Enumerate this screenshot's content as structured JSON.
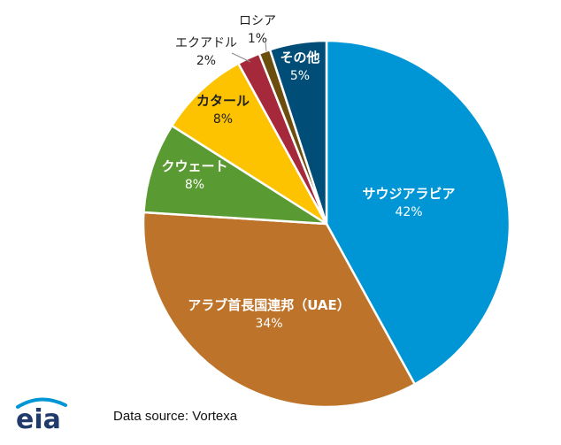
{
  "chart_data": {
    "type": "pie",
    "title": "",
    "categories": [
      "サウジアラビア",
      "アラブ首長国連邦（UAE）",
      "クウェート",
      "カタール",
      "エクアドル",
      "ロシア",
      "その他"
    ],
    "values": [
      42,
      34,
      8,
      8,
      2,
      1,
      5
    ],
    "value_labels": [
      "42%",
      "34%",
      "8%",
      "8%",
      "2%",
      "1%",
      "5%"
    ],
    "colors": [
      "#0096D6",
      "#BD732A",
      "#5A9A32",
      "#FDC300",
      "#A6293B",
      "#6B4E0E",
      "#004E78"
    ],
    "label_colors": [
      "#ffffff",
      "#ffffff",
      "#ffffff",
      "#1f1f1f",
      "#1f1f1f",
      "#1f1f1f",
      "#ffffff"
    ],
    "start": "12 o'clock",
    "direction": "clockwise"
  },
  "footer": {
    "source_text": "Data source: Vortexa",
    "logo_text": "eia",
    "logo_colors": {
      "text": "#1F3A6B",
      "accent": "#0096D6"
    }
  }
}
